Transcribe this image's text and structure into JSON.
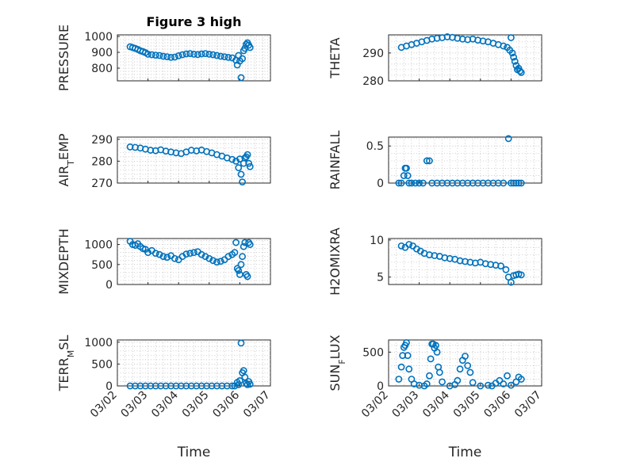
{
  "figure_title": "Figure 3 high",
  "colors": {
    "marker": "#0072BD",
    "axes": "#262626",
    "grid": "#b0b0b0",
    "background": "#ffffff"
  },
  "chart_data": [
    {
      "id": "pressure",
      "type": "scatter",
      "ylabel": "PRESSURE",
      "title": "Figure 3 high",
      "ylim": [
        720,
        1010
      ],
      "yticks": [
        800,
        900,
        1000
      ],
      "xlim": [
        "03/02",
        "03/07"
      ],
      "xticks": [
        "03/02",
        "03/03",
        "03/04",
        "03/05",
        "03/06",
        "03/07"
      ],
      "xlabel": "",
      "show_xticklabels": false,
      "grid": true,
      "x": [
        "03/02 10:00",
        "03/02 12:00",
        "03/02 14:00",
        "03/02 16:00",
        "03/02 18:00",
        "03/02 20:00",
        "03/02 22:00",
        "03/03 00:00",
        "03/03 03:00",
        "03/03 06:00",
        "03/03 09:00",
        "03/03 12:00",
        "03/03 15:00",
        "03/03 18:00",
        "03/03 21:00",
        "03/04 00:00",
        "03/04 03:00",
        "03/04 06:00",
        "03/04 09:00",
        "03/04 12:00",
        "03/04 15:00",
        "03/04 18:00",
        "03/04 21:00",
        "03/05 00:00",
        "03/05 03:00",
        "03/05 06:00",
        "03/05 09:00",
        "03/05 12:00",
        "03/05 15:00",
        "03/05 18:00",
        "03/05 21:00",
        "03/05 22:00",
        "03/05 23:00",
        "03/06 00:00",
        "03/06 01:00",
        "03/06 02:00",
        "03/06 03:00",
        "03/06 04:00",
        "03/06 05:00",
        "03/06 06:00",
        "03/06 07:00",
        "03/06 08:00"
      ],
      "y": [
        935,
        930,
        925,
        918,
        910,
        905,
        898,
        888,
        885,
        882,
        880,
        875,
        872,
        868,
        870,
        878,
        885,
        890,
        892,
        888,
        886,
        890,
        892,
        888,
        885,
        880,
        875,
        872,
        868,
        865,
        850,
        820,
        880,
        845,
        740,
        860,
        910,
        925,
        950,
        960,
        945,
        930
      ]
    },
    {
      "id": "theta",
      "type": "scatter",
      "ylabel": "THETA",
      "ylim": [
        280,
        296.5
      ],
      "yticks": [
        280,
        290
      ],
      "xlim": [
        "03/02",
        "03/07"
      ],
      "xticks": [
        "03/02",
        "03/03",
        "03/04",
        "03/05",
        "03/06",
        "03/07"
      ],
      "xlabel": "",
      "show_xticklabels": false,
      "grid": true,
      "x": [
        "03/02 10:00",
        "03/02 14:00",
        "03/02 18:00",
        "03/02 22:00",
        "03/03 02:00",
        "03/03 06:00",
        "03/03 10:00",
        "03/03 14:00",
        "03/03 18:00",
        "03/03 22:00",
        "03/04 02:00",
        "03/04 06:00",
        "03/04 10:00",
        "03/04 14:00",
        "03/04 18:00",
        "03/04 22:00",
        "03/05 02:00",
        "03/05 06:00",
        "03/05 10:00",
        "03/05 14:00",
        "03/05 18:00",
        "03/05 21:00",
        "03/05 23:00",
        "03/06 00:00",
        "03/06 01:00",
        "03/06 02:00",
        "03/06 03:00",
        "03/06 04:00",
        "03/06 05:00",
        "03/06 06:00",
        "03/06 07:00",
        "03/06 08:00"
      ],
      "y": [
        292,
        292.5,
        293,
        293.5,
        294,
        294.5,
        295,
        295.3,
        295.5,
        295.8,
        295.6,
        295.3,
        295,
        294.8,
        295,
        294.6,
        294.3,
        294,
        293.5,
        293,
        292.5,
        292,
        291,
        295.5,
        290,
        288.5,
        287,
        285.5,
        284,
        284.5,
        283.5,
        283
      ]
    },
    {
      "id": "air_temp",
      "type": "scatter",
      "ylabel": "AIR_TEMP",
      "ylim": [
        270,
        291
      ],
      "yticks": [
        270,
        280,
        290
      ],
      "xlim": [
        "03/02",
        "03/07"
      ],
      "xticks": [
        "03/02",
        "03/03",
        "03/04",
        "03/05",
        "03/06",
        "03/07"
      ],
      "xlabel": "",
      "show_xticklabels": false,
      "grid": true,
      "x": [
        "03/02 10:00",
        "03/02 14:00",
        "03/02 18:00",
        "03/02 22:00",
        "03/03 02:00",
        "03/03 06:00",
        "03/03 10:00",
        "03/03 14:00",
        "03/03 18:00",
        "03/03 22:00",
        "03/04 02:00",
        "03/04 06:00",
        "03/04 10:00",
        "03/04 14:00",
        "03/04 18:00",
        "03/04 22:00",
        "03/05 02:00",
        "03/05 06:00",
        "03/05 10:00",
        "03/05 14:00",
        "03/05 18:00",
        "03/05 21:00",
        "03/05 23:00",
        "03/06 00:00",
        "03/06 01:00",
        "03/06 02:00",
        "03/06 03:00",
        "03/06 04:00",
        "03/06 05:00",
        "03/06 06:00",
        "03/06 07:00",
        "03/06 08:00"
      ],
      "y": [
        286.5,
        286.3,
        286,
        285.5,
        285,
        284.8,
        285.2,
        284.6,
        284.2,
        283.8,
        283.5,
        284.2,
        285,
        284.7,
        285.1,
        284.4,
        283.8,
        283,
        282.3,
        281.5,
        280.8,
        280,
        277,
        281,
        274,
        270.5,
        279,
        281.5,
        282,
        283,
        279,
        277.5
      ]
    },
    {
      "id": "rainfall",
      "type": "scatter",
      "ylabel": "RAINFALL",
      "ylim": [
        0,
        0.62
      ],
      "yticks": [
        0,
        0.5
      ],
      "xlim": [
        "03/02",
        "03/07"
      ],
      "xticks": [
        "03/02",
        "03/03",
        "03/04",
        "03/05",
        "03/06",
        "03/07"
      ],
      "xlabel": "",
      "show_xticklabels": false,
      "grid": true,
      "x": [
        "03/02 08:00",
        "03/02 10:00",
        "03/02 12:00",
        "03/02 13:00",
        "03/02 14:00",
        "03/02 15:00",
        "03/02 16:00",
        "03/02 18:00",
        "03/02 21:00",
        "03/03 00:00",
        "03/03 03:00",
        "03/03 06:00",
        "03/03 08:00",
        "03/03 10:00",
        "03/03 14:00",
        "03/03 18:00",
        "03/03 22:00",
        "03/04 02:00",
        "03/04 06:00",
        "03/04 10:00",
        "03/04 14:00",
        "03/04 18:00",
        "03/04 22:00",
        "03/05 02:00",
        "03/05 06:00",
        "03/05 10:00",
        "03/05 14:00",
        "03/05 18:00",
        "03/05 22:00",
        "03/06 00:00",
        "03/06 02:00",
        "03/06 04:00",
        "03/06 06:00",
        "03/06 08:00"
      ],
      "y": [
        0,
        0,
        0.1,
        0.2,
        0.2,
        0.1,
        0,
        0,
        0,
        0,
        0,
        0.3,
        0.3,
        0,
        0,
        0,
        0,
        0,
        0,
        0,
        0,
        0,
        0,
        0,
        0,
        0,
        0,
        0,
        0.6,
        0,
        0,
        0,
        0,
        0
      ]
    },
    {
      "id": "mixdepth",
      "type": "scatter",
      "ylabel": "MIXDEPTH",
      "ylim": [
        0,
        1150
      ],
      "yticks": [
        0,
        500,
        1000
      ],
      "xlim": [
        "03/02",
        "03/07"
      ],
      "xticks": [
        "03/02",
        "03/03",
        "03/04",
        "03/05",
        "03/06",
        "03/07"
      ],
      "xlabel": "",
      "show_xticklabels": false,
      "grid": true,
      "x": [
        "03/02 10:00",
        "03/02 12:00",
        "03/02 14:00",
        "03/02 16:00",
        "03/02 18:00",
        "03/02 20:00",
        "03/02 22:00",
        "03/03 00:00",
        "03/03 03:00",
        "03/03 06:00",
        "03/03 09:00",
        "03/03 12:00",
        "03/03 15:00",
        "03/03 18:00",
        "03/03 21:00",
        "03/04 00:00",
        "03/04 03:00",
        "03/04 06:00",
        "03/04 09:00",
        "03/04 12:00",
        "03/04 15:00",
        "03/04 18:00",
        "03/04 21:00",
        "03/05 00:00",
        "03/05 03:00",
        "03/05 06:00",
        "03/05 09:00",
        "03/05 12:00",
        "03/05 15:00",
        "03/05 18:00",
        "03/05 20:00",
        "03/05 21:00",
        "03/05 22:00",
        "03/05 23:00",
        "03/06 00:00",
        "03/06 01:00",
        "03/06 02:00",
        "03/06 03:00",
        "03/06 04:00",
        "03/06 05:00",
        "03/06 06:00",
        "03/06 07:00",
        "03/06 08:00"
      ],
      "y": [
        1080,
        1000,
        980,
        1020,
        950,
        900,
        880,
        800,
        850,
        780,
        750,
        700,
        680,
        720,
        650,
        620,
        700,
        760,
        780,
        800,
        820,
        750,
        700,
        650,
        600,
        560,
        580,
        620,
        700,
        750,
        800,
        1050,
        400,
        350,
        250,
        500,
        700,
        950,
        1050,
        250,
        200,
        1050,
        1000
      ]
    },
    {
      "id": "h2omixra",
      "type": "scatter",
      "ylabel": "H2OMIXRA",
      "ylim": [
        4,
        10.2
      ],
      "yticks": [
        5,
        10
      ],
      "xlim": [
        "03/02",
        "03/07"
      ],
      "xticks": [
        "03/02",
        "03/03",
        "03/04",
        "03/05",
        "03/06",
        "03/07"
      ],
      "xlabel": "",
      "show_xticklabels": false,
      "grid": true,
      "x": [
        "03/02 10:00",
        "03/02 13:00",
        "03/02 16:00",
        "03/02 19:00",
        "03/02 22:00",
        "03/03 01:00",
        "03/03 04:00",
        "03/03 08:00",
        "03/03 12:00",
        "03/03 16:00",
        "03/03 20:00",
        "03/04 00:00",
        "03/04 04:00",
        "03/04 08:00",
        "03/04 12:00",
        "03/04 16:00",
        "03/04 20:00",
        "03/05 00:00",
        "03/05 04:00",
        "03/05 08:00",
        "03/05 12:00",
        "03/05 16:00",
        "03/05 20:00",
        "03/05 22:00",
        "03/06 00:00",
        "03/06 02:00",
        "03/06 04:00",
        "03/06 06:00",
        "03/06 08:00"
      ],
      "y": [
        9.2,
        9,
        9.4,
        9.2,
        8.8,
        8.5,
        8.2,
        8,
        7.9,
        7.8,
        7.6,
        7.5,
        7.4,
        7.2,
        7.1,
        7,
        6.9,
        7,
        6.8,
        6.7,
        6.6,
        6.5,
        6,
        5,
        4.3,
        5.2,
        5.3,
        5.4,
        5.3
      ]
    },
    {
      "id": "terr_msl",
      "type": "scatter",
      "ylabel": "TERR_MSL",
      "ylim": [
        0,
        1050
      ],
      "yticks": [
        0,
        500,
        1000
      ],
      "xlim": [
        "03/02",
        "03/07"
      ],
      "xticks": [
        "03/02",
        "03/03",
        "03/04",
        "03/05",
        "03/06",
        "03/07"
      ],
      "xlabel": "Time",
      "show_xticklabels": true,
      "grid": true,
      "x": [
        "03/02 10:00",
        "03/02 14:00",
        "03/02 18:00",
        "03/02 22:00",
        "03/03 02:00",
        "03/03 06:00",
        "03/03 10:00",
        "03/03 14:00",
        "03/03 18:00",
        "03/03 22:00",
        "03/04 02:00",
        "03/04 06:00",
        "03/04 10:00",
        "03/04 14:00",
        "03/04 18:00",
        "03/04 22:00",
        "03/05 02:00",
        "03/05 06:00",
        "03/05 10:00",
        "03/05 14:00",
        "03/05 18:00",
        "03/05 20:00",
        "03/05 22:00",
        "03/05 23:00",
        "03/06 00:00",
        "03/06 01:00",
        "03/06 02:00",
        "03/06 03:00",
        "03/06 04:00",
        "03/06 05:00",
        "03/06 06:00",
        "03/06 07:00",
        "03/06 08:00"
      ],
      "y": [
        0,
        0,
        0,
        0,
        0,
        0,
        0,
        0,
        0,
        0,
        0,
        0,
        0,
        0,
        0,
        0,
        0,
        0,
        0,
        0,
        0,
        0,
        80,
        30,
        120,
        980,
        300,
        350,
        200,
        60,
        30,
        100,
        40
      ]
    },
    {
      "id": "sun_flux",
      "type": "scatter",
      "ylabel": "SUN_FLUX",
      "ylim": [
        0,
        680
      ],
      "yticks": [
        0,
        500
      ],
      "xlim": [
        "03/02",
        "03/07"
      ],
      "xticks": [
        "03/02",
        "03/03",
        "03/04",
        "03/05",
        "03/06",
        "03/07"
      ],
      "xlabel": "Time",
      "show_xticklabels": true,
      "grid": true,
      "x": [
        "03/02 08:00",
        "03/02 10:00",
        "03/02 11:00",
        "03/02 12:00",
        "03/02 13:00",
        "03/02 14:00",
        "03/02 15:00",
        "03/02 16:00",
        "03/02 18:00",
        "03/02 20:00",
        "03/03 00:00",
        "03/03 04:00",
        "03/03 06:00",
        "03/03 08:00",
        "03/03 09:00",
        "03/03 10:00",
        "03/03 11:00",
        "03/03 12:00",
        "03/03 13:00",
        "03/03 14:00",
        "03/03 15:00",
        "03/03 16:00",
        "03/03 18:00",
        "03/04 00:00",
        "03/04 04:00",
        "03/04 06:00",
        "03/04 08:00",
        "03/04 10:00",
        "03/04 12:00",
        "03/04 14:00",
        "03/04 16:00",
        "03/04 18:00",
        "03/05 00:00",
        "03/05 06:00",
        "03/05 09:00",
        "03/05 12:00",
        "03/05 15:00",
        "03/05 18:00",
        "03/05 21:00",
        "03/06 00:00",
        "03/06 04:00",
        "03/06 06:00",
        "03/06 08:00"
      ],
      "y": [
        100,
        280,
        450,
        570,
        600,
        640,
        450,
        250,
        100,
        30,
        10,
        0,
        30,
        150,
        400,
        620,
        620,
        560,
        600,
        500,
        280,
        200,
        60,
        0,
        20,
        80,
        250,
        380,
        440,
        300,
        200,
        50,
        0,
        10,
        0,
        40,
        80,
        30,
        150,
        10,
        60,
        130,
        100
      ]
    }
  ]
}
